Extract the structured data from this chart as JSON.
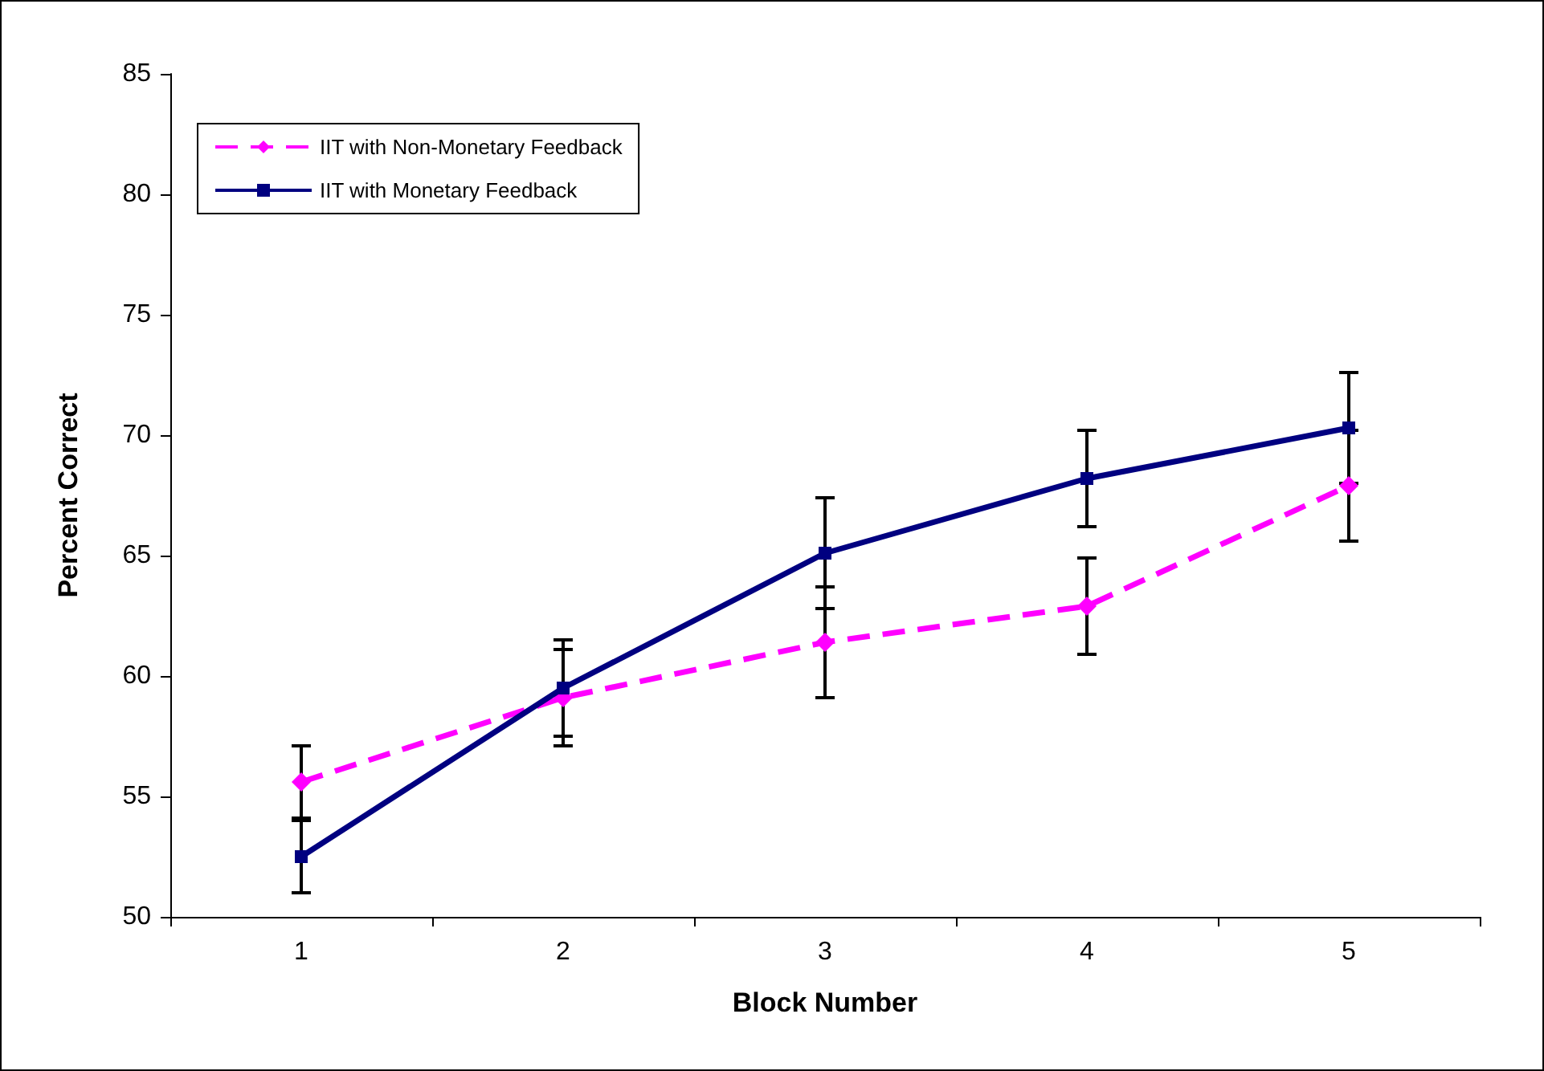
{
  "chart_data": {
    "type": "line",
    "xlabel": "Block Number",
    "ylabel": "Percent Correct",
    "categories": [
      "1",
      "2",
      "3",
      "4",
      "5"
    ],
    "series": [
      {
        "name": "IIT with Non-Monetary Feedback",
        "color": "#ff00ff",
        "marker": "diamond",
        "line_style": "dashed",
        "values": [
          55.6,
          59.1,
          61.4,
          62.9,
          67.9
        ],
        "errors": [
          1.5,
          2,
          2.3,
          2,
          2.3
        ]
      },
      {
        "name": "IIT with Monetary Feedback",
        "color": "#000080",
        "marker": "square",
        "line_style": "solid",
        "values": [
          52.5,
          59.5,
          65.1,
          68.2,
          70.3
        ],
        "errors": [
          1.5,
          2,
          2.3,
          2,
          2.3
        ]
      }
    ],
    "ylim": [
      50,
      85
    ],
    "yticks": [
      50,
      55,
      60,
      65,
      70,
      75,
      80,
      85
    ],
    "grid": false,
    "legend": "top left"
  }
}
